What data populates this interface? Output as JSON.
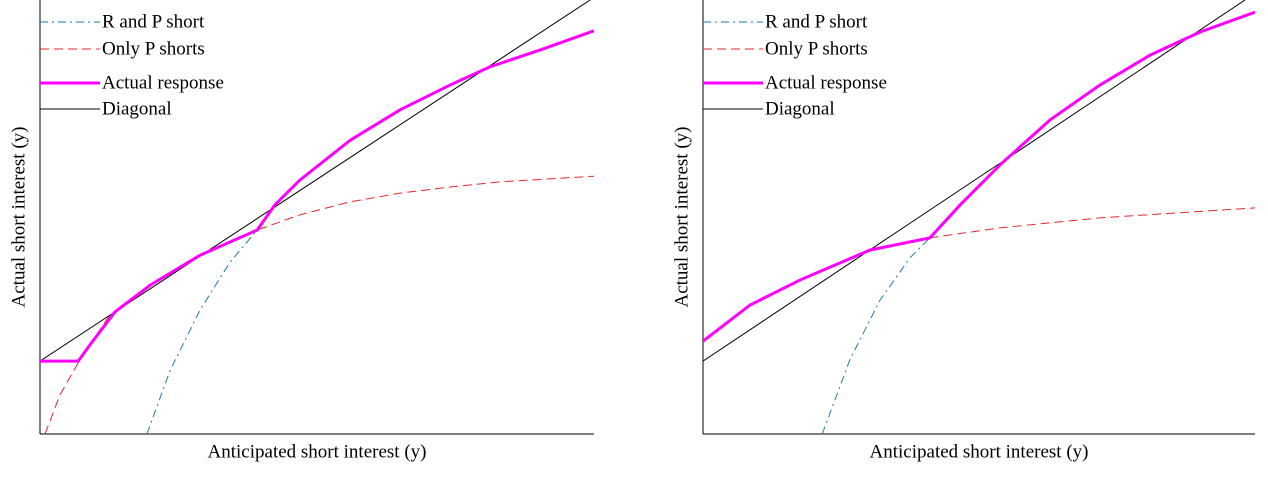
{
  "chart_data": [
    {
      "type": "line",
      "xlabel": "Anticipated short interest (y)",
      "ylabel": "Actual short interest (y)",
      "xlim": [
        0,
        1
      ],
      "ylim": [
        0,
        1
      ],
      "legend": "upper left",
      "series": [
        {
          "name": "R and P short",
          "color": "#1f77b4",
          "linestyle": "dashdot",
          "linewidth": 1,
          "x": [
            0.193,
            0.235,
            0.289,
            0.343,
            0.392
          ],
          "values": [
            0,
            0.147,
            0.286,
            0.396,
            0.47
          ]
        },
        {
          "name": "Only P shorts",
          "color": "#e8262a",
          "linestyle": "dashed",
          "linewidth": 1,
          "x": [
            0.009,
            0.036,
            0.072,
            0.126,
            0.199,
            0.289,
            0.392,
            0.469,
            0.56,
            0.65,
            0.74,
            0.83,
            1
          ],
          "values": [
            0,
            0.09,
            0.171,
            0.274,
            0.343,
            0.412,
            0.47,
            0.505,
            0.535,
            0.555,
            0.569,
            0.581,
            0.594
          ]
        },
        {
          "name": "Actual response",
          "color": "#ff00ff",
          "linestyle": "solid",
          "linewidth": 3,
          "x": [
            0,
            0.069,
            0.09,
            0.135,
            0.199,
            0.289,
            0.392,
            0.424,
            0.469,
            0.56,
            0.65,
            0.74,
            0.812,
            0.903,
            1
          ],
          "values": [
            0.168,
            0.168,
            0.205,
            0.281,
            0.343,
            0.412,
            0.47,
            0.528,
            0.585,
            0.677,
            0.747,
            0.804,
            0.846,
            0.885,
            0.929
          ]
        },
        {
          "name": "Diagonal",
          "color": "#000000",
          "linestyle": "solid",
          "linewidth": 1,
          "x": [
            0,
            0.993
          ],
          "values": [
            0.168,
            1.0
          ]
        }
      ]
    },
    {
      "type": "line",
      "xlabel": "Anticipated short interest (y)",
      "ylabel": "Actual short interest (y)",
      "xlim": [
        0,
        1
      ],
      "ylim": [
        0,
        1
      ],
      "legend": "upper left",
      "series": [
        {
          "name": "R and P short",
          "color": "#1f77b4",
          "linestyle": "dashdot",
          "linewidth": 1,
          "x": [
            0.216,
            0.266,
            0.321,
            0.375,
            0.411
          ],
          "values": [
            0,
            0.171,
            0.309,
            0.406,
            0.452
          ]
        },
        {
          "name": "Only P shorts",
          "color": "#e8262a",
          "linestyle": "dashed",
          "linewidth": 1,
          "x": [
            0,
            0.085,
            0.176,
            0.303,
            0.411,
            0.538,
            0.719,
            1
          ],
          "values": [
            0.214,
            0.297,
            0.355,
            0.424,
            0.452,
            0.475,
            0.498,
            0.521
          ]
        },
        {
          "name": "Actual response",
          "color": "#ff00ff",
          "linestyle": "solid",
          "linewidth": 3,
          "x": [
            0,
            0.085,
            0.176,
            0.303,
            0.411,
            0.466,
            0.538,
            0.629,
            0.719,
            0.81,
            0.9,
            1
          ],
          "values": [
            0.214,
            0.297,
            0.355,
            0.424,
            0.452,
            0.528,
            0.62,
            0.724,
            0.804,
            0.873,
            0.926,
            0.972
          ]
        },
        {
          "name": "Diagonal",
          "color": "#000000",
          "linestyle": "solid",
          "linewidth": 1,
          "x": [
            0,
            0.982
          ],
          "values": [
            0.168,
            1.0
          ]
        }
      ]
    }
  ]
}
